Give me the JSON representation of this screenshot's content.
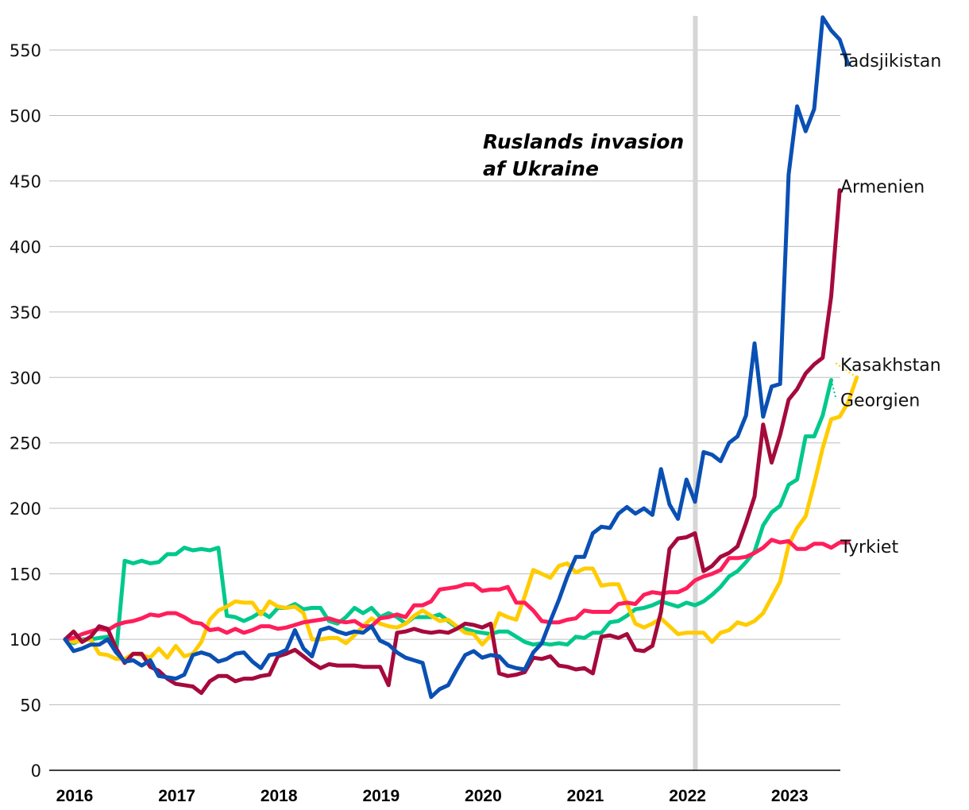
{
  "chart_data": {
    "type": "line",
    "title": "",
    "xlabel": "",
    "ylabel": "",
    "x_start": 2016.0,
    "x_step_months": 1,
    "xlim": [
      2016.0,
      2023.5
    ],
    "ylim": [
      0,
      575
    ],
    "y_ticks": [
      0,
      50,
      100,
      150,
      200,
      250,
      300,
      350,
      400,
      450,
      500,
      550
    ],
    "x_ticks": [
      {
        "label": "2016",
        "value": 2016
      },
      {
        "label": "2017",
        "value": 2017
      },
      {
        "label": "2018",
        "value": 2018
      },
      {
        "label": "2019",
        "value": 2019
      },
      {
        "label": "2020",
        "value": 2020
      },
      {
        "label": "2021",
        "value": 2021
      },
      {
        "label": "2022",
        "value": 2022
      },
      {
        "label": "2023",
        "value": 2023
      }
    ],
    "grid": true,
    "event": {
      "x": 2022.17,
      "label_line1": "Ruslands invasion",
      "label_line2": "af Ukraine",
      "color": "#d6d6d6"
    },
    "series": [
      {
        "name": "Tadsjikistan",
        "color": "#0a50b4",
        "values": [
          100,
          91,
          93,
          96,
          96,
          100,
          90,
          83,
          84,
          80,
          84,
          72,
          71,
          70,
          73,
          88,
          90,
          88,
          83,
          85,
          89,
          90,
          83,
          78,
          88,
          89,
          92,
          107,
          93,
          87,
          107,
          109,
          106,
          104,
          106,
          105,
          110,
          99,
          96,
          90,
          86,
          84,
          82,
          56,
          62,
          65,
          77,
          88,
          91,
          86,
          88,
          87,
          80,
          78,
          77,
          90,
          97,
          114,
          130,
          148,
          163,
          163,
          181,
          186,
          185,
          196,
          201,
          196,
          200,
          195,
          230,
          203,
          192,
          222,
          205,
          243,
          241,
          236,
          250,
          255,
          271,
          326,
          270,
          293,
          295,
          455,
          507,
          488,
          505,
          575,
          565,
          558,
          539
        ]
      },
      {
        "name": "Armenien",
        "color": "#a50a3c",
        "values": [
          100,
          106,
          98,
          102,
          110,
          108,
          93,
          82,
          89,
          89,
          79,
          76,
          70,
          66,
          65,
          64,
          59,
          68,
          72,
          72,
          68,
          70,
          70,
          72,
          73,
          87,
          89,
          92,
          87,
          82,
          78,
          81,
          80,
          80,
          80,
          79,
          79,
          79,
          65,
          105,
          106,
          108,
          106,
          105,
          106,
          105,
          108,
          112,
          111,
          109,
          112,
          74,
          72,
          73,
          75,
          86,
          85,
          87,
          80,
          79,
          77,
          78,
          74,
          102,
          103,
          101,
          104,
          92,
          91,
          95,
          121,
          169,
          177,
          178,
          181,
          152,
          156,
          163,
          166,
          171,
          189,
          209,
          264,
          235,
          256,
          283,
          291,
          303,
          310,
          315,
          362,
          443
        ]
      },
      {
        "name": "Kasakhstan",
        "color": "#ffcc00",
        "values": [
          100,
          98,
          99,
          100,
          89,
          88,
          85,
          85,
          89,
          88,
          86,
          93,
          86,
          95,
          87,
          89,
          98,
          115,
          122,
          125,
          129,
          128,
          128,
          119,
          129,
          125,
          124,
          125,
          120,
          100,
          100,
          101,
          101,
          97,
          103,
          110,
          116,
          112,
          110,
          109,
          112,
          118,
          122,
          118,
          114,
          115,
          110,
          105,
          104,
          96,
          103,
          120,
          117,
          115,
          133,
          153,
          150,
          147,
          156,
          158,
          151,
          154,
          154,
          141,
          142,
          142,
          127,
          112,
          109,
          112,
          116,
          110,
          104,
          105,
          105,
          105,
          98,
          105,
          107,
          113,
          111,
          114,
          120,
          132,
          144,
          172,
          185,
          194,
          219,
          246,
          268,
          270,
          281,
          300
        ]
      },
      {
        "name": "Georgien",
        "color": "#00c88c",
        "values": [
          100,
          97,
          100,
          100,
          101,
          102,
          90,
          160,
          158,
          160,
          158,
          159,
          165,
          165,
          170,
          168,
          169,
          168,
          170,
          118,
          117,
          114,
          117,
          121,
          117,
          124,
          124,
          127,
          123,
          124,
          124,
          114,
          112,
          117,
          124,
          120,
          124,
          117,
          120,
          117,
          112,
          117,
          117,
          117,
          119,
          114,
          109,
          108,
          106,
          105,
          104,
          106,
          106,
          102,
          98,
          96,
          97,
          96,
          97,
          96,
          102,
          101,
          105,
          105,
          113,
          114,
          118,
          123,
          124,
          126,
          129,
          127,
          125,
          128,
          126,
          129,
          134,
          140,
          148,
          152,
          159,
          167,
          187,
          197,
          202,
          218,
          222,
          255,
          255,
          271,
          298
        ]
      },
      {
        "name": "Tyrkiet",
        "color": "#ff1e5a",
        "values": [
          100,
          101,
          104,
          106,
          108,
          107,
          111,
          113,
          114,
          116,
          119,
          118,
          120,
          120,
          117,
          113,
          112,
          107,
          108,
          105,
          108,
          105,
          107,
          110,
          110,
          108,
          109,
          111,
          113,
          114,
          115,
          116,
          114,
          113,
          114,
          110,
          110,
          116,
          117,
          119,
          117,
          126,
          126,
          129,
          138,
          139,
          140,
          142,
          142,
          137,
          138,
          138,
          140,
          128,
          128,
          122,
          114,
          113,
          113,
          115,
          116,
          122,
          121,
          121,
          121,
          127,
          128,
          127,
          134,
          136,
          135,
          136,
          136,
          139,
          145,
          148,
          150,
          153,
          162,
          162,
          163,
          166,
          170,
          176,
          174,
          175,
          169,
          169,
          173,
          173,
          170,
          174,
          174
        ]
      }
    ],
    "series_labels": [
      {
        "name": "Tadsjikistan",
        "value": 542
      },
      {
        "name": "Armenien",
        "value": 446
      },
      {
        "name": "Kasakhstan",
        "value": 310
      },
      {
        "name": "Georgien",
        "value": 283
      },
      {
        "name": "Tyrkiet",
        "value": 171
      }
    ],
    "label_leaders": [
      {
        "name": "Kasakhstan",
        "color": "#ffcc00",
        "from": 300,
        "to": 311
      },
      {
        "name": "Georgien",
        "color": "#00c88c",
        "from": 298,
        "to": 285
      }
    ]
  }
}
